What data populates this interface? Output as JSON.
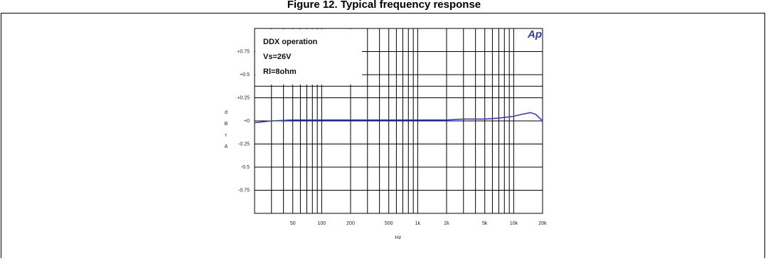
{
  "header": {
    "title": "Figure 12. Typical frequency response"
  },
  "logo_text": "Ap",
  "colors": {
    "trace": "#3a3ad0",
    "grid": "#000000",
    "background": "#ffffff"
  },
  "chart_data": {
    "type": "line",
    "title": "",
    "xlabel": "Hz",
    "ylabel_letters": [
      "d",
      "B",
      "r",
      "A"
    ],
    "x_scale": "log",
    "xlim": [
      20,
      20000
    ],
    "ylim": [
      -1,
      1
    ],
    "grid": true,
    "x_tick_labels": [
      {
        "value": 50,
        "label": "50"
      },
      {
        "value": 100,
        "label": "100"
      },
      {
        "value": 200,
        "label": "200"
      },
      {
        "value": 500,
        "label": "500"
      },
      {
        "value": 1000,
        "label": "1k"
      },
      {
        "value": 2000,
        "label": "2k"
      },
      {
        "value": 5000,
        "label": "5k"
      },
      {
        "value": 10000,
        "label": "10k"
      },
      {
        "value": 20000,
        "label": "20k"
      }
    ],
    "y_tick_labels": [
      {
        "value": 0.75,
        "label": "+0.75"
      },
      {
        "value": 0.5,
        "label": "+0.5"
      },
      {
        "value": 0.25,
        "label": "+0.25"
      },
      {
        "value": 0,
        "label": "+0"
      },
      {
        "value": -0.25,
        "label": "-0.25"
      },
      {
        "value": -0.5,
        "label": "-0.5"
      },
      {
        "value": -0.75,
        "label": "-0.75"
      }
    ],
    "annotations": [
      "DDX operation",
      "Vs=26V",
      "Rl=8ohm"
    ],
    "series": [
      {
        "x": [
          20,
          30,
          50,
          100,
          200,
          500,
          1000,
          2000,
          3000,
          5000,
          7000,
          10000,
          12000,
          15000,
          17000,
          20000
        ],
        "y": [
          -0.02,
          0.0,
          0.01,
          0.01,
          0.01,
          0.01,
          0.01,
          0.01,
          0.02,
          0.02,
          0.03,
          0.05,
          0.07,
          0.09,
          0.07,
          0.0
        ]
      }
    ]
  }
}
